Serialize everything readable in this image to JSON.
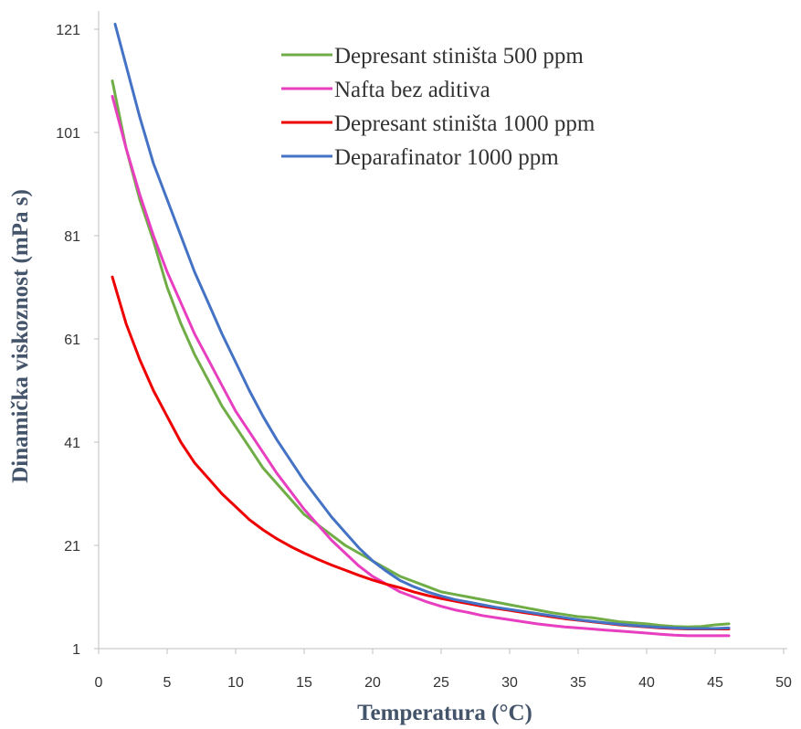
{
  "chart_data": {
    "type": "line",
    "title": "",
    "xlabel": "Temperatura (°C)",
    "ylabel": "Dinamička viskoznost (mPa s)",
    "xlim": [
      0,
      50
    ],
    "ylim": [
      1,
      121
    ],
    "xticks": [
      0,
      5,
      10,
      15,
      20,
      25,
      30,
      35,
      40,
      45,
      50
    ],
    "yticks": [
      1,
      21,
      41,
      61,
      81,
      101,
      121
    ],
    "grid": false,
    "legend_position": "top-right",
    "series": [
      {
        "name": "Depresant stiništa 500 ppm",
        "color": "#70ad47",
        "points": [
          [
            1,
            111
          ],
          [
            2,
            98
          ],
          [
            3,
            88
          ],
          [
            4,
            80
          ],
          [
            5,
            71
          ],
          [
            6,
            64
          ],
          [
            7,
            58
          ],
          [
            8,
            53
          ],
          [
            9,
            48
          ],
          [
            10,
            44
          ],
          [
            11,
            40
          ],
          [
            12,
            36
          ],
          [
            13,
            33
          ],
          [
            14,
            30
          ],
          [
            15,
            27
          ],
          [
            16,
            25
          ],
          [
            17,
            23
          ],
          [
            18,
            21
          ],
          [
            19,
            19.5
          ],
          [
            20,
            18
          ],
          [
            21,
            16.5
          ],
          [
            22,
            15
          ],
          [
            23,
            14
          ],
          [
            24,
            13
          ],
          [
            25,
            12
          ],
          [
            26,
            11.5
          ],
          [
            27,
            11
          ],
          [
            28,
            10.5
          ],
          [
            29,
            10
          ],
          [
            30,
            9.5
          ],
          [
            31,
            9
          ],
          [
            32,
            8.5
          ],
          [
            33,
            8
          ],
          [
            34,
            7.6
          ],
          [
            35,
            7.2
          ],
          [
            36,
            7
          ],
          [
            37,
            6.6
          ],
          [
            38,
            6.2
          ],
          [
            39,
            6
          ],
          [
            40,
            5.8
          ],
          [
            41,
            5.5
          ],
          [
            42,
            5.3
          ],
          [
            43,
            5.2
          ],
          [
            44,
            5.3
          ],
          [
            45,
            5.6
          ],
          [
            46,
            5.8
          ]
        ]
      },
      {
        "name": "Nafta bez aditiva",
        "color": "#e83ec0",
        "points": [
          [
            1,
            108
          ],
          [
            2,
            98
          ],
          [
            3,
            89
          ],
          [
            4,
            81
          ],
          [
            5,
            74
          ],
          [
            6,
            68
          ],
          [
            7,
            62
          ],
          [
            8,
            57
          ],
          [
            9,
            52
          ],
          [
            10,
            47
          ],
          [
            11,
            43
          ],
          [
            12,
            39
          ],
          [
            13,
            35
          ],
          [
            14,
            31.5
          ],
          [
            15,
            28
          ],
          [
            16,
            25
          ],
          [
            17,
            22
          ],
          [
            18,
            19.5
          ],
          [
            19,
            17
          ],
          [
            20,
            15
          ],
          [
            21,
            13.5
          ],
          [
            22,
            12
          ],
          [
            23,
            11
          ],
          [
            24,
            10
          ],
          [
            25,
            9.2
          ],
          [
            26,
            8.5
          ],
          [
            27,
            8
          ],
          [
            28,
            7.4
          ],
          [
            29,
            7
          ],
          [
            30,
            6.6
          ],
          [
            31,
            6.2
          ],
          [
            32,
            5.8
          ],
          [
            33,
            5.5
          ],
          [
            34,
            5.2
          ],
          [
            35,
            5
          ],
          [
            36,
            4.8
          ],
          [
            37,
            4.6
          ],
          [
            38,
            4.4
          ],
          [
            39,
            4.2
          ],
          [
            40,
            4
          ],
          [
            41,
            3.8
          ],
          [
            42,
            3.6
          ],
          [
            43,
            3.5
          ],
          [
            44,
            3.5
          ],
          [
            45,
            3.5
          ],
          [
            46,
            3.5
          ]
        ]
      },
      {
        "name": "Depresant stiništa 1000 ppm",
        "color": "#ee0000",
        "points": [
          [
            1,
            73
          ],
          [
            2,
            64
          ],
          [
            3,
            57
          ],
          [
            4,
            51
          ],
          [
            5,
            46
          ],
          [
            6,
            41
          ],
          [
            7,
            37
          ],
          [
            8,
            34
          ],
          [
            9,
            31
          ],
          [
            10,
            28.5
          ],
          [
            11,
            26
          ],
          [
            12,
            24
          ],
          [
            13,
            22.3
          ],
          [
            14,
            20.8
          ],
          [
            15,
            19.5
          ],
          [
            16,
            18.3
          ],
          [
            17,
            17.2
          ],
          [
            18,
            16.2
          ],
          [
            19,
            15.2
          ],
          [
            20,
            14.3
          ],
          [
            21,
            13.5
          ],
          [
            22,
            12.8
          ],
          [
            23,
            12
          ],
          [
            24,
            11.3
          ],
          [
            25,
            10.7
          ],
          [
            26,
            10.2
          ],
          [
            27,
            9.7
          ],
          [
            28,
            9.2
          ],
          [
            29,
            8.8
          ],
          [
            30,
            8.4
          ],
          [
            31,
            8
          ],
          [
            32,
            7.6
          ],
          [
            33,
            7.2
          ],
          [
            34,
            6.8
          ],
          [
            35,
            6.5
          ],
          [
            36,
            6.2
          ],
          [
            37,
            5.9
          ],
          [
            38,
            5.6
          ],
          [
            39,
            5.4
          ],
          [
            40,
            5.2
          ],
          [
            41,
            5
          ],
          [
            42,
            4.9
          ],
          [
            43,
            4.8
          ],
          [
            44,
            4.8
          ],
          [
            45,
            4.8
          ],
          [
            46,
            4.8
          ]
        ]
      },
      {
        "name": "Deparafinator 1000 ppm",
        "color": "#4472c4",
        "points": [
          [
            1.2,
            122
          ],
          [
            2,
            114
          ],
          [
            3,
            104
          ],
          [
            4,
            95
          ],
          [
            5,
            88
          ],
          [
            6,
            81
          ],
          [
            7,
            74
          ],
          [
            8,
            68
          ],
          [
            9,
            62
          ],
          [
            10,
            56.5
          ],
          [
            11,
            51
          ],
          [
            12,
            46
          ],
          [
            13,
            41.5
          ],
          [
            14,
            37.5
          ],
          [
            15,
            33.5
          ],
          [
            16,
            30
          ],
          [
            17,
            26.5
          ],
          [
            18,
            23.5
          ],
          [
            19,
            20.5
          ],
          [
            20,
            18
          ],
          [
            21,
            16
          ],
          [
            22,
            14.2
          ],
          [
            23,
            13
          ],
          [
            24,
            12
          ],
          [
            25,
            11.2
          ],
          [
            26,
            10.5
          ],
          [
            27,
            10
          ],
          [
            28,
            9.5
          ],
          [
            29,
            9
          ],
          [
            30,
            8.6
          ],
          [
            31,
            8.2
          ],
          [
            32,
            7.8
          ],
          [
            33,
            7.4
          ],
          [
            34,
            7
          ],
          [
            35,
            6.6
          ],
          [
            36,
            6.3
          ],
          [
            37,
            6
          ],
          [
            38,
            5.7
          ],
          [
            39,
            5.5
          ],
          [
            40,
            5.3
          ],
          [
            41,
            5.1
          ],
          [
            42,
            5
          ],
          [
            43,
            4.9
          ],
          [
            44,
            4.9
          ],
          [
            45,
            4.9
          ],
          [
            46,
            5
          ]
        ]
      }
    ]
  }
}
